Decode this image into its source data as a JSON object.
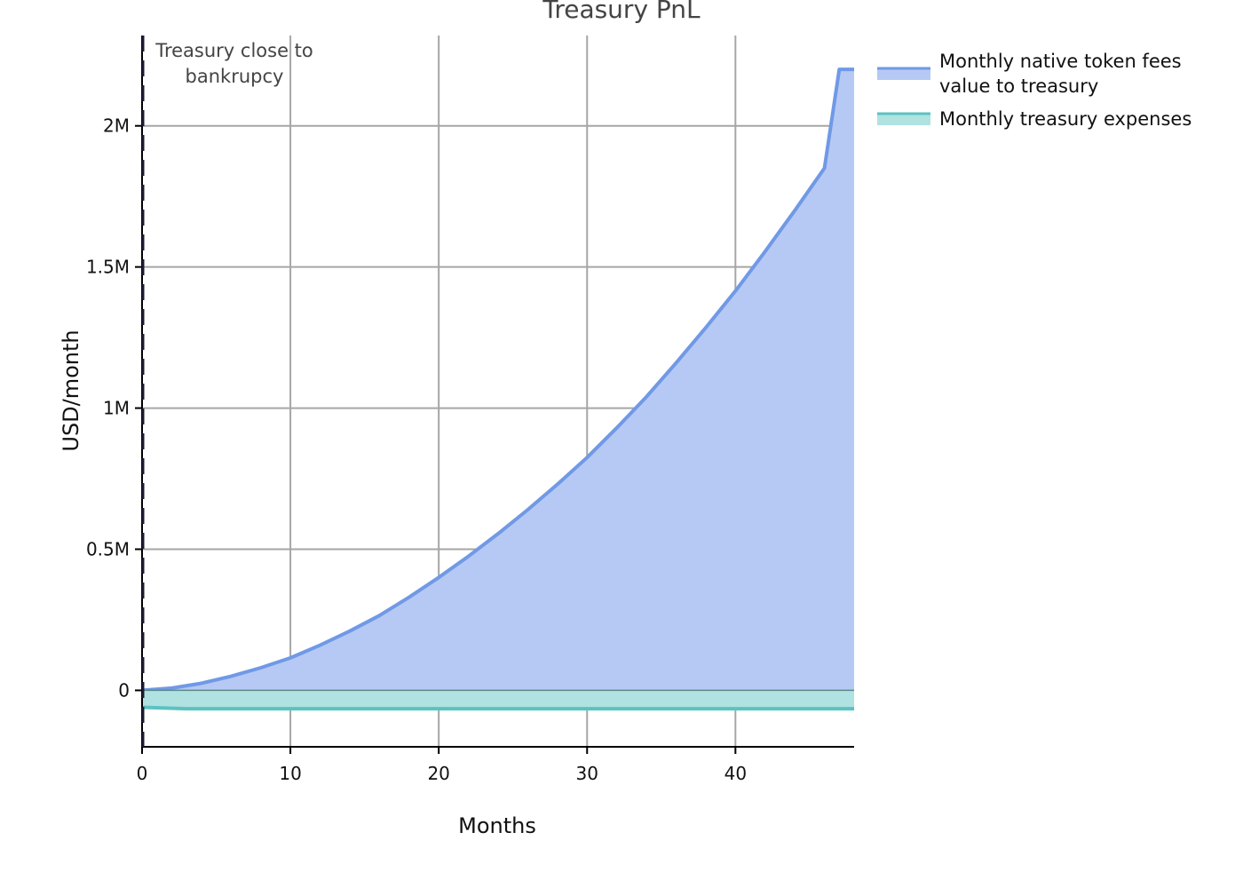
{
  "chart_data": {
    "type": "area",
    "title": "Treasury PnL",
    "xlabel": "Months",
    "ylabel": "USD/month",
    "xlim": [
      0,
      48
    ],
    "ylim": [
      -200000,
      2320000
    ],
    "x_ticks": [
      0,
      10,
      20,
      30,
      40
    ],
    "x_tick_labels": [
      "0",
      "10",
      "20",
      "30",
      "40"
    ],
    "y_ticks": [
      0,
      500000,
      1000000,
      1500000,
      2000000
    ],
    "y_tick_labels": [
      "0",
      "0.5M",
      "1M",
      "1.5M",
      "2M"
    ],
    "grid": true,
    "legend_position": "outside-top-right",
    "annotation": {
      "x": 0,
      "line_style": "dashed",
      "text_lines": [
        "Treasury close to",
        "bankrupcy"
      ]
    },
    "series": [
      {
        "name_lines": [
          "Monthly native token fees",
          "value to treasury"
        ],
        "line_color": "#7099e6",
        "fill_color": "#b6c9f4",
        "x": [
          0,
          2,
          4,
          6,
          8,
          10,
          12,
          14,
          16,
          18,
          20,
          22,
          24,
          26,
          28,
          30,
          32,
          34,
          36,
          38,
          40,
          42,
          44,
          46,
          47,
          48
        ],
        "values": [
          0,
          8000,
          25000,
          50000,
          80000,
          115000,
          160000,
          210000,
          265000,
          330000,
          400000,
          475000,
          555000,
          640000,
          730000,
          825000,
          930000,
          1040000,
          1160000,
          1285000,
          1415000,
          1555000,
          1700000,
          1850000,
          2200000,
          2200000
        ]
      },
      {
        "name": "Monthly treasury expenses",
        "line_color": "#5cc2c2",
        "fill_color": "#b0e2e2",
        "x": [
          0,
          3,
          48
        ],
        "values": [
          -60000,
          -65000,
          -65000
        ]
      }
    ]
  }
}
